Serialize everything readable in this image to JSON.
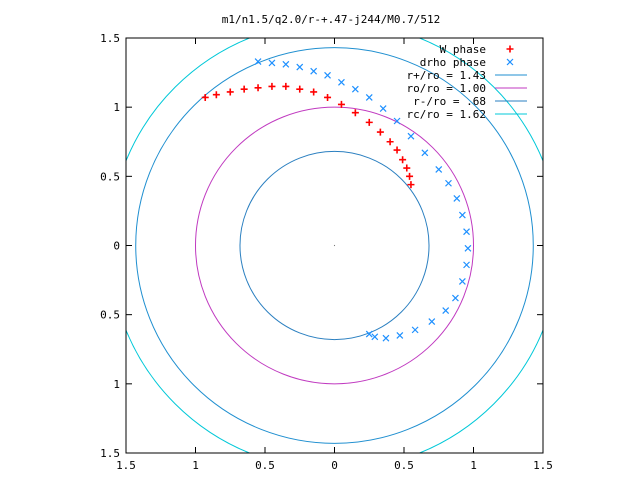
{
  "chart_data": {
    "type": "scatter",
    "title": "m1/n1.5/q2.0/r-+.47-j244/M0.7/512",
    "xlim": [
      -1.5,
      1.5
    ],
    "ylim": [
      -1.5,
      1.5
    ],
    "x_ticks": [
      -1.5,
      -1,
      -0.5,
      0,
      0.5,
      1,
      1.5
    ],
    "y_ticks": [
      -1.5,
      -1,
      -0.5,
      0,
      0.5,
      1,
      1.5
    ],
    "x_tick_labels": [
      "1.5",
      "1",
      "0.5",
      "0",
      "0.5",
      "1",
      "1.5"
    ],
    "y_tick_labels": [
      "1.5",
      "1",
      "0.5",
      "0",
      "0.5",
      "1",
      "1.5"
    ],
    "grid": false,
    "legend_position": "top-right",
    "series": [
      {
        "name": "W phase",
        "kind": "points",
        "marker": "plus",
        "color": "#ff0000",
        "points": [
          [
            -0.93,
            1.07
          ],
          [
            -0.85,
            1.09
          ],
          [
            -0.75,
            1.11
          ],
          [
            -0.65,
            1.13
          ],
          [
            -0.55,
            1.14
          ],
          [
            -0.45,
            1.15
          ],
          [
            -0.35,
            1.15
          ],
          [
            -0.25,
            1.13
          ],
          [
            -0.15,
            1.11
          ],
          [
            -0.05,
            1.07
          ],
          [
            0.05,
            1.02
          ],
          [
            0.15,
            0.96
          ],
          [
            0.25,
            0.89
          ],
          [
            0.33,
            0.82
          ],
          [
            0.4,
            0.75
          ],
          [
            0.45,
            0.69
          ],
          [
            0.49,
            0.62
          ],
          [
            0.52,
            0.56
          ],
          [
            0.54,
            0.5
          ],
          [
            0.55,
            0.44
          ]
        ]
      },
      {
        "name": "drho phase",
        "kind": "points",
        "marker": "cross",
        "color": "#1e90ff",
        "points": [
          [
            -0.55,
            1.33
          ],
          [
            -0.45,
            1.32
          ],
          [
            -0.35,
            1.31
          ],
          [
            -0.25,
            1.29
          ],
          [
            -0.15,
            1.26
          ],
          [
            -0.05,
            1.23
          ],
          [
            0.05,
            1.18
          ],
          [
            0.15,
            1.13
          ],
          [
            0.25,
            1.07
          ],
          [
            0.35,
            0.99
          ],
          [
            0.45,
            0.9
          ],
          [
            0.55,
            0.79
          ],
          [
            0.65,
            0.67
          ],
          [
            0.75,
            0.55
          ],
          [
            0.82,
            0.45
          ],
          [
            0.88,
            0.34
          ],
          [
            0.92,
            0.22
          ],
          [
            0.95,
            0.1
          ],
          [
            0.96,
            -0.02
          ],
          [
            0.95,
            -0.14
          ],
          [
            0.92,
            -0.26
          ],
          [
            0.87,
            -0.38
          ],
          [
            0.8,
            -0.47
          ],
          [
            0.7,
            -0.55
          ],
          [
            0.58,
            -0.61
          ],
          [
            0.47,
            -0.65
          ],
          [
            0.37,
            -0.67
          ],
          [
            0.29,
            -0.66
          ],
          [
            0.25,
            -0.64
          ]
        ]
      },
      {
        "name": "r+/ro = 1.43",
        "kind": "circle",
        "radius": 1.43,
        "color": "#1f8fd0"
      },
      {
        "name": "ro/ro = 1.00",
        "kind": "circle",
        "radius": 1.0,
        "color": "#c03ac0"
      },
      {
        "name": "r-/ro = .68",
        "kind": "circle",
        "radius": 0.68,
        "color": "#2a7fc0"
      },
      {
        "name": "rc/ro = 1.62",
        "kind": "circle",
        "radius": 1.62,
        "color": "#00c8d8"
      }
    ]
  }
}
